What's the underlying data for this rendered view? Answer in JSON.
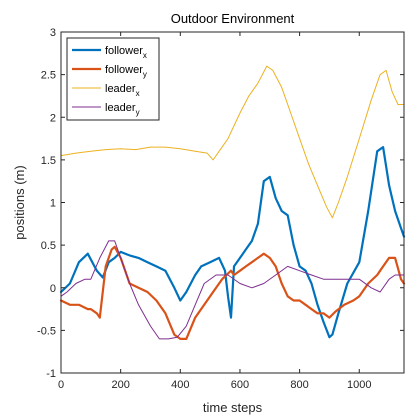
{
  "chart_data": {
    "type": "line",
    "title": "Outdoor Environment",
    "xlabel": "time steps",
    "ylabel": "positions (m)",
    "xlim": [
      0,
      1150
    ],
    "ylim": [
      -1,
      3
    ],
    "xticks": [
      0,
      200,
      400,
      600,
      800,
      1000
    ],
    "yticks": [
      -1,
      -0.5,
      0,
      0.5,
      1,
      1.5,
      2,
      2.5,
      3
    ],
    "xtick_labels": [
      "0",
      "200",
      "400",
      "600",
      "800",
      "1000"
    ],
    "ytick_labels": [
      "-1",
      "-0.5",
      "0",
      "0.5",
      "1",
      "1.5",
      "2",
      "2.5",
      "3"
    ],
    "grid": false,
    "legend_position": "top-left",
    "series": [
      {
        "name": "follower",
        "subscript": "x",
        "color": "#0072BD",
        "thick": true,
        "x": [
          0,
          30,
          60,
          90,
          120,
          140,
          160,
          180,
          200,
          230,
          260,
          290,
          320,
          350,
          380,
          400,
          420,
          450,
          470,
          500,
          530,
          550,
          560,
          570,
          580,
          600,
          620,
          640,
          660,
          680,
          700,
          720,
          740,
          760,
          780,
          800,
          820,
          840,
          860,
          880,
          900,
          910,
          930,
          960,
          1000,
          1030,
          1060,
          1080,
          1100,
          1120,
          1140,
          1150
        ],
        "y": [
          -0.05,
          0.05,
          0.3,
          0.4,
          0.2,
          0.12,
          0.3,
          0.35,
          0.42,
          0.38,
          0.35,
          0.3,
          0.25,
          0.2,
          0.0,
          -0.15,
          -0.05,
          0.15,
          0.25,
          0.3,
          0.35,
          0.2,
          -0.1,
          -0.35,
          0.25,
          0.35,
          0.45,
          0.55,
          0.75,
          1.25,
          1.3,
          1.05,
          0.9,
          0.85,
          0.5,
          0.25,
          0.2,
          0.05,
          -0.2,
          -0.4,
          -0.58,
          -0.55,
          -0.3,
          0.05,
          0.3,
          0.9,
          1.6,
          1.65,
          1.2,
          0.9,
          0.7,
          0.6
        ]
      },
      {
        "name": "follower",
        "subscript": "y",
        "color": "#D95319",
        "thick": true,
        "x": [
          0,
          30,
          60,
          90,
          100,
          120,
          130,
          150,
          170,
          180,
          200,
          230,
          260,
          290,
          320,
          350,
          380,
          400,
          420,
          450,
          480,
          510,
          540,
          570,
          580,
          600,
          620,
          640,
          660,
          680,
          700,
          720,
          740,
          760,
          780,
          800,
          820,
          840,
          860,
          880,
          900,
          920,
          950,
          980,
          1000,
          1030,
          1060,
          1080,
          1100,
          1120,
          1140,
          1150
        ],
        "y": [
          -0.15,
          -0.2,
          -0.2,
          -0.25,
          -0.25,
          -0.3,
          -0.35,
          0.25,
          0.45,
          0.48,
          0.35,
          0.05,
          0.0,
          -0.05,
          -0.15,
          -0.3,
          -0.55,
          -0.6,
          -0.6,
          -0.35,
          -0.2,
          -0.05,
          0.1,
          0.2,
          0.15,
          0.2,
          0.25,
          0.3,
          0.35,
          0.4,
          0.35,
          0.25,
          0.05,
          -0.1,
          -0.15,
          -0.15,
          -0.2,
          -0.25,
          -0.3,
          -0.3,
          -0.35,
          -0.28,
          -0.2,
          -0.15,
          -0.1,
          0.05,
          0.15,
          0.25,
          0.35,
          0.35,
          0.1,
          0.05
        ]
      },
      {
        "name": "leader",
        "subscript": "x",
        "color": "#EDB120",
        "thick": false,
        "x": [
          0,
          50,
          100,
          150,
          200,
          250,
          300,
          350,
          400,
          450,
          490,
          510,
          530,
          560,
          600,
          630,
          660,
          690,
          710,
          740,
          770,
          800,
          830,
          860,
          890,
          910,
          930,
          960,
          1000,
          1040,
          1070,
          1090,
          1110,
          1130,
          1150
        ],
        "y": [
          1.55,
          1.58,
          1.6,
          1.62,
          1.63,
          1.62,
          1.65,
          1.65,
          1.63,
          1.6,
          1.58,
          1.5,
          1.6,
          1.75,
          2.05,
          2.25,
          2.4,
          2.6,
          2.55,
          2.35,
          2.05,
          1.75,
          1.45,
          1.2,
          0.95,
          0.82,
          1.0,
          1.3,
          1.75,
          2.2,
          2.5,
          2.55,
          2.3,
          2.15,
          2.15
        ]
      },
      {
        "name": "leader",
        "subscript": "y",
        "color": "#7E2F8E",
        "thick": false,
        "x": [
          0,
          20,
          50,
          80,
          100,
          130,
          160,
          180,
          200,
          230,
          260,
          300,
          330,
          360,
          390,
          420,
          450,
          480,
          520,
          560,
          600,
          640,
          680,
          720,
          760,
          800,
          840,
          880,
          920,
          960,
          1000,
          1040,
          1070,
          1100,
          1120,
          1150
        ],
        "y": [
          -0.1,
          -0.05,
          0.05,
          0.1,
          0.1,
          0.35,
          0.55,
          0.55,
          0.35,
          0.05,
          -0.2,
          -0.45,
          -0.6,
          -0.6,
          -0.58,
          -0.45,
          -0.2,
          0.05,
          0.15,
          0.15,
          0.05,
          0.0,
          0.05,
          0.15,
          0.25,
          0.2,
          0.15,
          0.1,
          0.1,
          0.1,
          0.1,
          0.0,
          -0.05,
          0.1,
          0.15,
          0.15
        ]
      }
    ]
  }
}
